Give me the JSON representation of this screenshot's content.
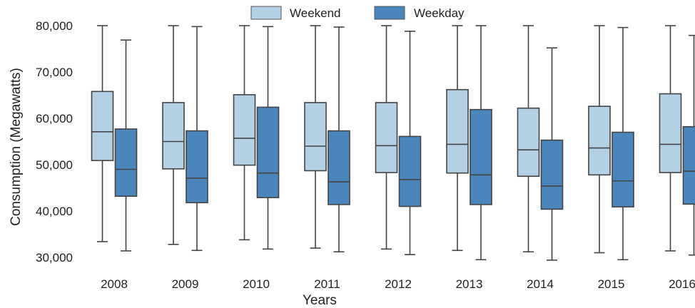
{
  "chart_data": {
    "type": "box",
    "title": "",
    "xlabel": "Years",
    "ylabel": "Consumption (Megawatts)",
    "ylim": [
      30000,
      80000
    ],
    "yticks": [
      30000,
      40000,
      50000,
      60000,
      70000,
      80000
    ],
    "ytick_labels": [
      "30,000",
      "40,000",
      "50,000",
      "60,000",
      "70,000",
      "80,000"
    ],
    "categories": [
      "2008",
      "2009",
      "2010",
      "2011",
      "2012",
      "2013",
      "2014",
      "2015",
      "2016"
    ],
    "grid": false,
    "legend_position": "top-center",
    "series": [
      {
        "name": "Weekend",
        "color": "#b3d0e5",
        "boxes": [
          {
            "whislo": 33400,
            "q1": 50900,
            "med": 57100,
            "q3": 65800,
            "whishi": 80000
          },
          {
            "whislo": 32800,
            "q1": 49100,
            "med": 55000,
            "q3": 63400,
            "whishi": 80000
          },
          {
            "whislo": 33800,
            "q1": 49900,
            "med": 55700,
            "q3": 65100,
            "whishi": 80000
          },
          {
            "whislo": 32000,
            "q1": 48700,
            "med": 54000,
            "q3": 63400,
            "whishi": 80000
          },
          {
            "whislo": 31800,
            "q1": 48300,
            "med": 54100,
            "q3": 63400,
            "whishi": 80000
          },
          {
            "whislo": 31500,
            "q1": 48200,
            "med": 54400,
            "q3": 66200,
            "whishi": 80000
          },
          {
            "whislo": 31200,
            "q1": 47500,
            "med": 53200,
            "q3": 62200,
            "whishi": 80000
          },
          {
            "whislo": 31000,
            "q1": 47800,
            "med": 53600,
            "q3": 62600,
            "whishi": 80000
          },
          {
            "whislo": 31400,
            "q1": 48300,
            "med": 54400,
            "q3": 65300,
            "whishi": 80000
          }
        ]
      },
      {
        "name": "Weekday",
        "color": "#4a86bb",
        "boxes": [
          {
            "whislo": 31400,
            "q1": 43200,
            "med": 49000,
            "q3": 57700,
            "whishi": 76900
          },
          {
            "whislo": 31500,
            "q1": 41800,
            "med": 47100,
            "q3": 57300,
            "whishi": 79800
          },
          {
            "whislo": 31800,
            "q1": 42900,
            "med": 48200,
            "q3": 62400,
            "whishi": 79800
          },
          {
            "whislo": 31200,
            "q1": 41400,
            "med": 46300,
            "q3": 57300,
            "whishi": 79700
          },
          {
            "whislo": 30600,
            "q1": 41000,
            "med": 46800,
            "q3": 56100,
            "whishi": 78800
          },
          {
            "whislo": 29500,
            "q1": 41400,
            "med": 47800,
            "q3": 61900,
            "whishi": 80000
          },
          {
            "whislo": 29400,
            "q1": 40400,
            "med": 45400,
            "q3": 55300,
            "whishi": 75200
          },
          {
            "whislo": 29500,
            "q1": 40900,
            "med": 46500,
            "q3": 57000,
            "whishi": 79600
          },
          {
            "whislo": 30500,
            "q1": 41500,
            "med": 48600,
            "q3": 58200,
            "whishi": 77900
          }
        ]
      }
    ]
  }
}
